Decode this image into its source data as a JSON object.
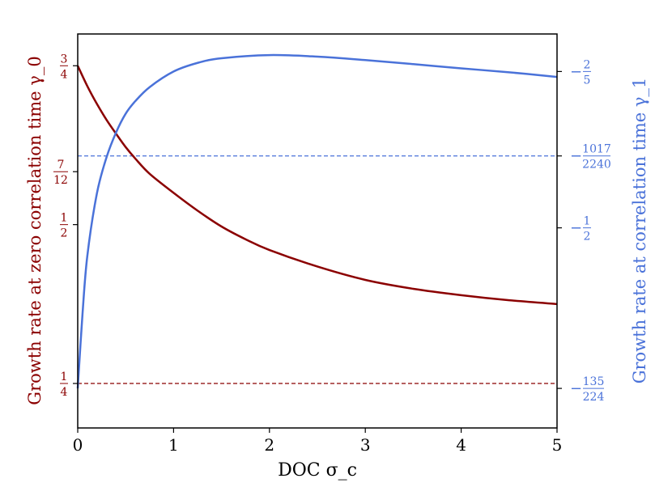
{
  "chart_data": {
    "type": "line",
    "title": "",
    "xlabel": "DOC σ_c",
    "ylabel_left": "Growth rate at zero correlation time γ_0",
    "ylabel_right": "Growth rate at correlation time γ_1",
    "xlim": [
      0,
      5
    ],
    "x_ticks": [
      0,
      1,
      2,
      3,
      4,
      5
    ],
    "x_tick_labels": [
      "0",
      "1",
      "2",
      "3",
      "4",
      "5"
    ],
    "left_ylim": [
      0.18,
      0.8
    ],
    "left_ticks": [
      {
        "value": 0.75,
        "num": "3",
        "den": "4"
      },
      {
        "value": 0.5833,
        "num": "7",
        "den": "12"
      },
      {
        "value": 0.5,
        "num": "1",
        "den": "2"
      },
      {
        "value": 0.25,
        "num": "1",
        "den": "4"
      }
    ],
    "right_ylim": [
      -0.628,
      -0.376
    ],
    "right_ticks": [
      {
        "value": -0.4,
        "sign": "−",
        "num": "2",
        "den": "5"
      },
      {
        "value": -0.454,
        "sign": "−",
        "num": "1017",
        "den": "2240"
      },
      {
        "value": -0.5,
        "sign": "−",
        "num": "1",
        "den": "2"
      },
      {
        "value": -0.6027,
        "sign": "−",
        "num": "135",
        "den": "224"
      }
    ],
    "colors": {
      "gamma0": "#8b0000",
      "gamma1": "#4a72d9"
    },
    "series": [
      {
        "axis": "left",
        "x": [
          0,
          0.1,
          0.2,
          0.3,
          0.4,
          0.5,
          0.6,
          0.75,
          1.0,
          1.25,
          1.5,
          1.75,
          2.0,
          2.5,
          3.0,
          3.5,
          4.0,
          4.5,
          5.0
        ],
        "values": [
          0.75,
          0.718,
          0.69,
          0.665,
          0.643,
          0.622,
          0.604,
          0.58,
          0.55,
          0.522,
          0.497,
          0.477,
          0.46,
          0.434,
          0.413,
          0.399,
          0.389,
          0.381,
          0.375
        ]
      },
      {
        "axis": "right",
        "x": [
          0,
          0.05,
          0.1,
          0.2,
          0.3,
          0.4,
          0.5,
          0.6,
          0.75,
          1.0,
          1.25,
          1.5,
          2.0,
          2.5,
          3.0,
          3.5,
          4.0,
          4.5,
          5.0
        ],
        "values": [
          -0.6027,
          -0.555,
          -0.518,
          -0.478,
          -0.455,
          -0.439,
          -0.427,
          -0.419,
          -0.41,
          -0.4,
          -0.3945,
          -0.3915,
          -0.3895,
          -0.3905,
          -0.3927,
          -0.3953,
          -0.398,
          -0.4005,
          -0.4035
        ]
      }
    ],
    "reference_lines": [
      {
        "axis": "left",
        "y": 0.25,
        "style": "dashed"
      },
      {
        "axis": "right",
        "y": -0.454,
        "style": "dashed"
      }
    ]
  }
}
